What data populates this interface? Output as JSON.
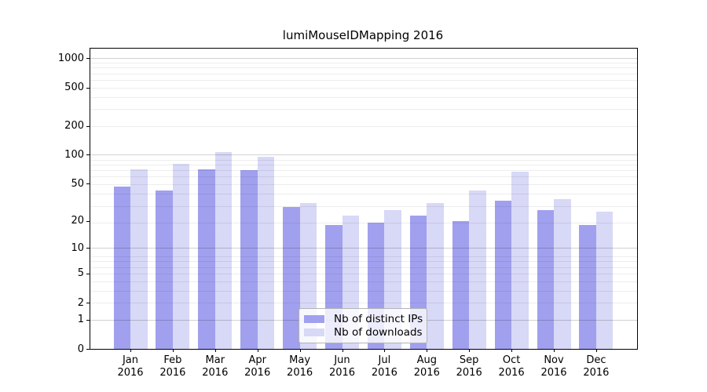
{
  "chart_data": {
    "type": "bar",
    "title": "lumiMouseIDMapping 2016",
    "categories": [
      "Jan",
      "Feb",
      "Mar",
      "Apr",
      "May",
      "Jun",
      "Jul",
      "Aug",
      "Sep",
      "Oct",
      "Nov",
      "Dec"
    ],
    "year_label": "2016",
    "series": [
      {
        "name": "Nb of distinct IPs",
        "color": "#a0a0ee",
        "values": [
          46,
          42,
          71,
          69,
          28,
          18,
          19,
          23,
          20,
          33,
          26,
          18
        ]
      },
      {
        "name": "Nb of downloads",
        "color": "#d8d8f7",
        "values": [
          71,
          81,
          107,
          96,
          31,
          23,
          26,
          31,
          42,
          67,
          34,
          25
        ]
      }
    ],
    "xlabel": "",
    "ylabel": "",
    "yscale": "log1p",
    "yticks": [
      0,
      1,
      2,
      5,
      10,
      20,
      50,
      100,
      200,
      500,
      1000
    ],
    "major_gridlines": [
      1,
      10,
      100,
      1000
    ],
    "ylim": [
      0,
      1259
    ],
    "grid": true,
    "legend_position": "inside-bottom-center"
  },
  "colors": {
    "background": "#ffffff",
    "axis": "#000000",
    "major_grid": "rgba(0,0,0,0.18)",
    "minor_grid": "rgba(0,0,0,0.07)",
    "bar_distinct_ips": "#a0a0ee",
    "bar_downloads": "#d8d8f7"
  }
}
